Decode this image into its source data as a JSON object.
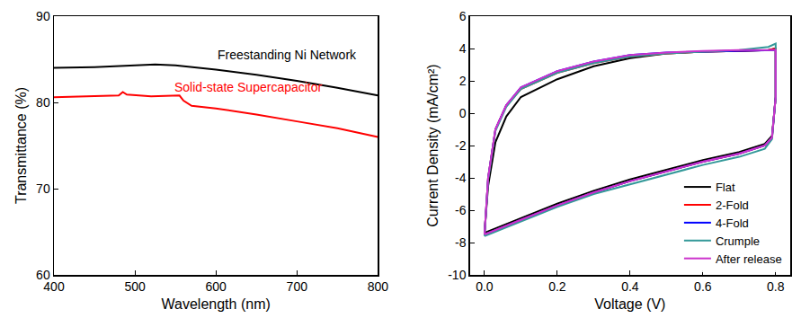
{
  "chart_data": [
    {
      "type": "line",
      "x_label": "Wavelength (nm)",
      "y_label": "Transmittance (%)",
      "xlim": [
        400,
        800
      ],
      "xticks": [
        400,
        500,
        600,
        700,
        800
      ],
      "ylim": [
        60,
        90
      ],
      "yticks": [
        60,
        70,
        80,
        90
      ],
      "grid": false,
      "series": [
        {
          "name": "Freestanding Ni Network",
          "color": "#000000",
          "x": [
            400,
            450,
            500,
            525,
            550,
            600,
            650,
            700,
            750,
            800
          ],
          "values": [
            84.0,
            84.1,
            84.3,
            84.4,
            84.3,
            83.8,
            83.2,
            82.5,
            81.7,
            80.8
          ]
        },
        {
          "name": "Solid-state Supercapacitor",
          "color": "#ff0000",
          "x": [
            400,
            450,
            480,
            485,
            490,
            520,
            555,
            560,
            570,
            600,
            650,
            700,
            750,
            800
          ],
          "values": [
            80.6,
            80.7,
            80.8,
            81.2,
            80.9,
            80.7,
            80.8,
            80.2,
            79.6,
            79.3,
            78.6,
            77.8,
            77.0,
            76.0
          ]
        }
      ]
    },
    {
      "type": "line",
      "x_label": "Voltage (V)",
      "y_label": "Current Density (mA/cm²)",
      "xlim": [
        -0.04,
        0.84
      ],
      "xticks": [
        {
          "value": 0,
          "label": "0.0"
        },
        {
          "value": 0.2,
          "label": "0.2"
        },
        {
          "value": 0.4,
          "label": "0.4"
        },
        {
          "value": 0.6,
          "label": "0.6"
        },
        {
          "value": 0.8,
          "label": "0.8"
        }
      ],
      "ylim": [
        -10,
        6
      ],
      "yticks": [
        -10,
        -8,
        -6,
        -4,
        -2,
        0,
        2,
        4,
        6
      ],
      "grid": false,
      "legend": "lower right",
      "series": [
        {
          "name": "Flat",
          "color": "#000000",
          "x": [
            0,
            0.01,
            0.03,
            0.06,
            0.1,
            0.2,
            0.3,
            0.4,
            0.5,
            0.6,
            0.7,
            0.78,
            0.8,
            0.8,
            0.79,
            0.77,
            0.7,
            0.6,
            0.5,
            0.4,
            0.3,
            0.2,
            0.1,
            0.03,
            0
          ],
          "values": [
            -7.4,
            -4.5,
            -1.8,
            -0.2,
            1.0,
            2.1,
            2.9,
            3.4,
            3.7,
            3.8,
            3.85,
            3.9,
            4.0,
            1.0,
            -1.4,
            -1.9,
            -2.4,
            -2.9,
            -3.5,
            -4.1,
            -4.8,
            -5.6,
            -6.5,
            -7.1,
            -7.4
          ]
        },
        {
          "name": "2-Fold",
          "color": "#ff0000",
          "x": [
            0,
            0.01,
            0.03,
            0.06,
            0.1,
            0.2,
            0.3,
            0.4,
            0.5,
            0.6,
            0.7,
            0.78,
            0.8,
            0.8,
            0.79,
            0.77,
            0.7,
            0.6,
            0.5,
            0.4,
            0.3,
            0.2,
            0.1,
            0.03,
            0
          ],
          "values": [
            -7.5,
            -4.0,
            -1.0,
            0.5,
            1.5,
            2.5,
            3.1,
            3.5,
            3.7,
            3.8,
            3.85,
            3.9,
            4.0,
            1.0,
            -1.5,
            -2.0,
            -2.5,
            -3.0,
            -3.6,
            -4.2,
            -4.9,
            -5.7,
            -6.6,
            -7.2,
            -7.5
          ]
        },
        {
          "name": "4-Fold",
          "color": "#0000ff",
          "x": [
            0,
            0.01,
            0.03,
            0.06,
            0.1,
            0.2,
            0.3,
            0.4,
            0.5,
            0.6,
            0.7,
            0.78,
            0.8,
            0.8,
            0.79,
            0.77,
            0.7,
            0.6,
            0.5,
            0.4,
            0.3,
            0.2,
            0.1,
            0.03,
            0
          ],
          "values": [
            -7.5,
            -4.0,
            -1.0,
            0.5,
            1.6,
            2.6,
            3.2,
            3.6,
            3.75,
            3.8,
            3.85,
            3.9,
            3.9,
            1.0,
            -1.5,
            -2.0,
            -2.5,
            -3.0,
            -3.6,
            -4.2,
            -4.9,
            -5.7,
            -6.6,
            -7.2,
            -7.5
          ]
        },
        {
          "name": "Crumple",
          "color": "#339999",
          "x": [
            0,
            0.01,
            0.03,
            0.06,
            0.1,
            0.2,
            0.3,
            0.4,
            0.5,
            0.6,
            0.7,
            0.78,
            0.8,
            0.8,
            0.79,
            0.77,
            0.7,
            0.6,
            0.5,
            0.4,
            0.3,
            0.2,
            0.1,
            0.03,
            0
          ],
          "values": [
            -7.6,
            -4.1,
            -1.1,
            0.4,
            1.5,
            2.5,
            3.1,
            3.5,
            3.7,
            3.8,
            3.9,
            4.1,
            4.3,
            1.0,
            -1.6,
            -2.2,
            -2.7,
            -3.2,
            -3.8,
            -4.4,
            -5.0,
            -5.8,
            -6.7,
            -7.3,
            -7.6
          ]
        },
        {
          "name": "After release",
          "color": "#cc33cc",
          "x": [
            0,
            0.01,
            0.03,
            0.06,
            0.1,
            0.2,
            0.3,
            0.4,
            0.5,
            0.6,
            0.7,
            0.78,
            0.8,
            0.8,
            0.79,
            0.77,
            0.7,
            0.6,
            0.5,
            0.4,
            0.3,
            0.2,
            0.1,
            0.03,
            0
          ],
          "values": [
            -7.5,
            -4.0,
            -1.0,
            0.5,
            1.6,
            2.6,
            3.2,
            3.6,
            3.75,
            3.85,
            3.9,
            3.9,
            3.9,
            1.0,
            -1.5,
            -2.0,
            -2.5,
            -3.0,
            -3.6,
            -4.2,
            -4.9,
            -5.7,
            -6.6,
            -7.2,
            -7.5
          ]
        }
      ]
    }
  ]
}
